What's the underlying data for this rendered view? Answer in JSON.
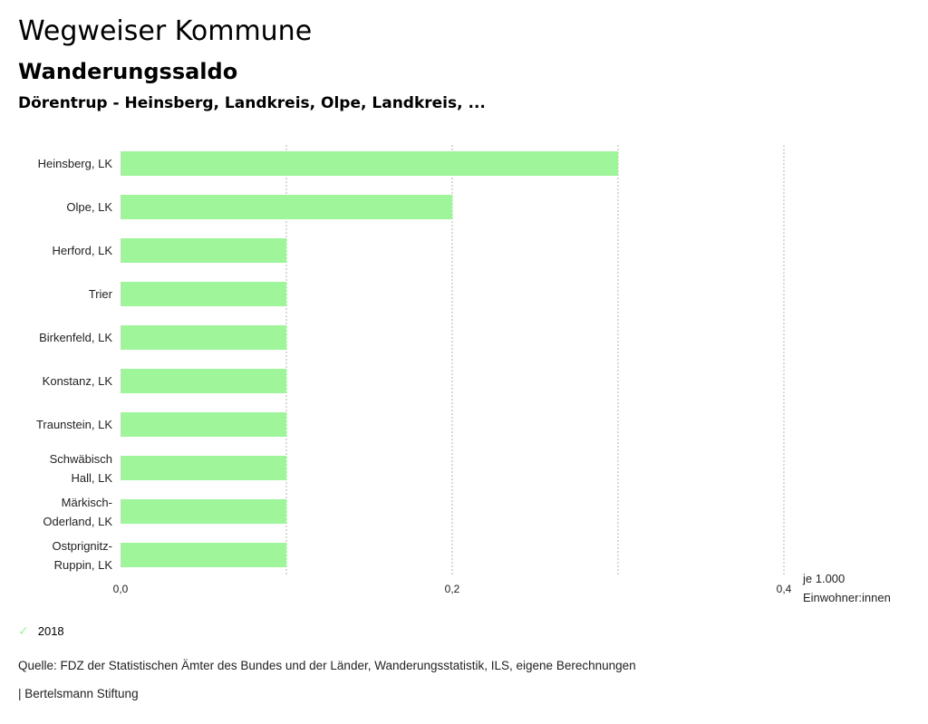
{
  "header": {
    "title": "Wegweiser Kommune",
    "subtitle": "Wanderungssaldo",
    "region": "Dörentrup - Heinsberg, Landkreis, Olpe, Landkreis, ..."
  },
  "chart_data": {
    "type": "bar",
    "orientation": "horizontal",
    "categories": [
      [
        "Heinsberg, LK"
      ],
      [
        "Olpe, LK"
      ],
      [
        "Herford, LK"
      ],
      [
        "Trier"
      ],
      [
        "Birkenfeld, LK"
      ],
      [
        "Konstanz, LK"
      ],
      [
        "Traunstein, LK"
      ],
      [
        "Schwäbisch",
        "Hall, LK"
      ],
      [
        "Märkisch-",
        "Oderland, LK"
      ],
      [
        "Ostprignitz-",
        "Ruppin, LK"
      ]
    ],
    "series": [
      {
        "name": "2018",
        "color": "#9ef59a",
        "values": [
          0.3,
          0.2,
          0.1,
          0.1,
          0.1,
          0.1,
          0.1,
          0.1,
          0.1,
          0.1
        ]
      }
    ],
    "xlim": [
      0,
      0.4
    ],
    "ticks": [
      0.0,
      0.1,
      0.2,
      0.3,
      0.4
    ],
    "tick_labels": [
      "0,0",
      "",
      "0,2",
      "",
      "0,4"
    ],
    "unit_label": [
      "je 1.000",
      "Einwohner:innen"
    ],
    "grid": true
  },
  "legend": {
    "label": "2018",
    "color": "#9ef59a"
  },
  "footer": {
    "source": "Quelle: FDZ der Statistischen Ämter des Bundes und der Länder, Wanderungsstatistik, ILS, eigene Berechnungen",
    "credit": "| Bertelsmann Stiftung"
  }
}
